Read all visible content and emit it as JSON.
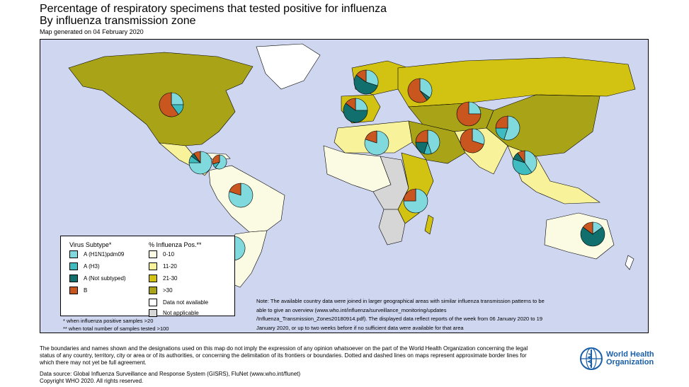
{
  "title": {
    "line1": "Percentage of respiratory specimens that tested positive for influenza",
    "line2": "By influenza transmission zone",
    "generated": "Map generated on 04 February 2020"
  },
  "colors": {
    "ocean": "#cfd6f0",
    "h1n1": "#7fd9dd",
    "h3": "#3fbcc0",
    "not_subtyped": "#11706e",
    "b": "#c8561e",
    "pos_0_10": "#fbfbe3",
    "pos_11_20": "#f8f39a",
    "pos_21_30": "#d2c313",
    "pos_30_plus": "#a9a417",
    "na": "#ffffff",
    "not_applicable": "#d6d6d6"
  },
  "legend": {
    "subtype_title": "Virus Subtype*",
    "subtypes": [
      {
        "label": "A (H1N1)pdm09",
        "color": "#7fd9dd"
      },
      {
        "label": "A (H3)",
        "color": "#3fbcc0"
      },
      {
        "label": "A (Not subtyped)",
        "color": "#11706e"
      },
      {
        "label": "B",
        "color": "#c8561e"
      }
    ],
    "pos_title": "% Influenza Pos.**",
    "pos_classes": [
      {
        "label": "0-10",
        "color": "#fbfbe3"
      },
      {
        "label": "11-20",
        "color": "#f8f39a"
      },
      {
        "label": "21-30",
        "color": "#d2c313"
      },
      {
        "label": ">30",
        "color": "#a9a417"
      },
      {
        "label": "Data not available",
        "color": "#ffffff"
      },
      {
        "label": "Not applicable",
        "color": "#d6d6d6"
      }
    ],
    "footnote1": "* when influenza positive samples >20",
    "footnote2": "** when total number of samples tested >100"
  },
  "note": "Note: The available country data were joined in larger geographical areas with similar influenza transmission patterns to be able to give an overview (www.who.int/influenza/surveillance_monitoring/updates /Influenza_Transmission_Zones20180914.pdf). The displayed data reflect reports of the week from 06 January 2020 to 19 January 2020, or up to two weeks before if no sufficient data were available for that area",
  "disclaimer": "The boundaries and names shown and the designations used on this map do not imply the expression of any opinion whatsoever on the part of the World Health Organization concerning the legal status of any country, territory, city or area or of its authorities, or concerning the delimitation of its frontiers or boundaries. Dotted and dashed lines on maps represent approximate border lines for which there may not yet be full agreement.",
  "source": {
    "line1": "Data source: Global Influenza Surveillance and Response System (GISRS), FluNet (www.who.int/flunet)",
    "line2": "Copyright WHO 2020. All rights reserved."
  },
  "who_logo": {
    "line1": "World Health",
    "line2": "Organization"
  },
  "pies": [
    {
      "zone": "north-america",
      "shares": [
        0.25,
        0.15,
        0.0,
        0.6
      ]
    },
    {
      "zone": "central-america",
      "shares": [
        0.75,
        0.1,
        0.05,
        0.1
      ]
    },
    {
      "zone": "caribbean",
      "shares": [
        0.6,
        0.1,
        0.0,
        0.3
      ]
    },
    {
      "zone": "tropical-south-america",
      "shares": [
        0.8,
        0.0,
        0.0,
        0.2
      ]
    },
    {
      "zone": "temperate-south-america",
      "shares": [
        0.6,
        0.0,
        0.0,
        0.4
      ]
    },
    {
      "zone": "northern-europe",
      "shares": [
        0.3,
        0.0,
        0.55,
        0.15
      ]
    },
    {
      "zone": "south-west-europe",
      "shares": [
        0.25,
        0.0,
        0.6,
        0.15
      ]
    },
    {
      "zone": "eastern-europe",
      "shares": [
        0.35,
        0.0,
        0.05,
        0.6
      ]
    },
    {
      "zone": "central-asia",
      "shares": [
        0.25,
        0.0,
        0.0,
        0.75
      ]
    },
    {
      "zone": "northern-africa",
      "shares": [
        0.8,
        0.0,
        0.0,
        0.2
      ]
    },
    {
      "zone": "western-asia",
      "shares": [
        0.45,
        0.1,
        0.2,
        0.25
      ]
    },
    {
      "zone": "southern-asia",
      "shares": [
        0.3,
        0.0,
        0.0,
        0.7
      ]
    },
    {
      "zone": "eastern-asia",
      "shares": [
        0.55,
        0.2,
        0.0,
        0.25
      ]
    },
    {
      "zone": "south-east-asia",
      "shares": [
        0.4,
        0.4,
        0.1,
        0.1
      ]
    },
    {
      "zone": "eastern-africa",
      "shares": [
        0.75,
        0.0,
        0.0,
        0.25
      ]
    },
    {
      "zone": "oceania",
      "shares": [
        0.15,
        0.0,
        0.7,
        0.15
      ]
    }
  ]
}
